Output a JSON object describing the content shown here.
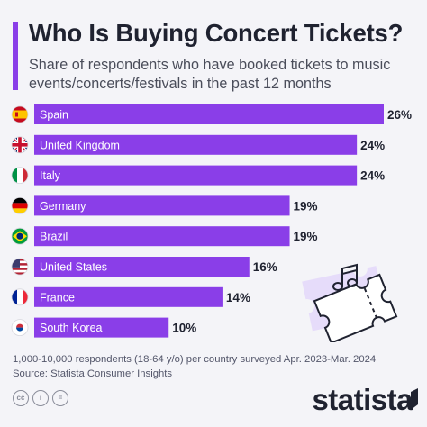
{
  "title": "Who Is Buying Concert Tickets?",
  "subtitle": "Share of respondents who have booked tickets to music events/concerts/festivals in the past 12 months",
  "footnote": {
    "line1": "1,000-10,000 respondents (18-64 y/o) per country surveyed Apr. 2023-Mar. 2024",
    "line2": "Source: Statista Consumer Insights"
  },
  "brand": "statista",
  "license_icons": [
    "cc-icon",
    "attribution-icon",
    "no-derivatives-icon"
  ],
  "decoration": "music-ticket-icon",
  "colors": {
    "bar": "#8a3ee8",
    "accent": "#8a3ee8",
    "text": "#1f2230",
    "background": "#f4f4f8"
  },
  "chart_data": {
    "type": "bar",
    "orientation": "horizontal",
    "categories": [
      "Spain",
      "United Kingdom",
      "Italy",
      "Germany",
      "Brazil",
      "United States",
      "France",
      "South Korea"
    ],
    "values": [
      26,
      24,
      24,
      19,
      19,
      16,
      14,
      10
    ],
    "value_labels": [
      "26%",
      "24%",
      "24%",
      "19%",
      "19%",
      "16%",
      "14%",
      "10%"
    ],
    "flags": [
      "spain-flag-icon",
      "uk-flag-icon",
      "italy-flag-icon",
      "germany-flag-icon",
      "brazil-flag-icon",
      "usa-flag-icon",
      "france-flag-icon",
      "south-korea-flag-icon"
    ],
    "unit": "%",
    "xlim": [
      0,
      26
    ],
    "grid": false,
    "legend": "none"
  }
}
